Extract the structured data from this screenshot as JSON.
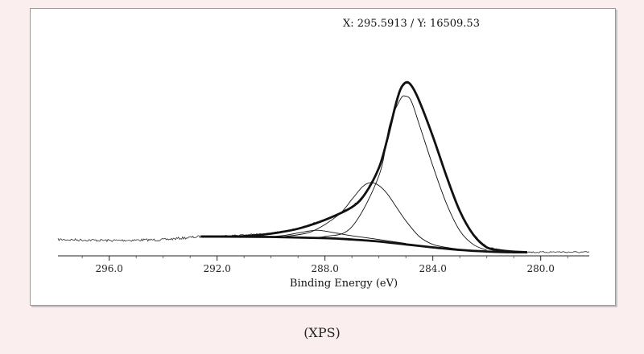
{
  "cursor_readout": "X: 295.5913 / Y: 16509.53",
  "caption": "(XPS)",
  "chart_data": {
    "type": "line",
    "xlabel": "Binding Energy (eV)",
    "ylabel": "",
    "title": "",
    "xlim": [
      297.9,
      278.2
    ],
    "x_reversed": true,
    "ylim": [
      0,
      100
    ],
    "x_ticks": [
      296.0,
      292.0,
      288.0,
      284.0,
      280.0
    ],
    "x_tick_labels": [
      "296.0",
      "292.0",
      "288.0",
      "284.0",
      "280.0"
    ],
    "grid": false,
    "series": [
      {
        "role": "measured",
        "style": "noisy-thin",
        "x": [
          297.9,
          296.0,
          294.0,
          292.6,
          292.0,
          290.0,
          289.0,
          288.0,
          287.0,
          286.5,
          286.0,
          285.7,
          285.4,
          285.2,
          285.0,
          284.8,
          284.5,
          284.0,
          283.5,
          283.0,
          282.5,
          282.0,
          281.5,
          281.0,
          280.5,
          280.0,
          279.5,
          279.0,
          278.2
        ],
        "y": [
          7.5,
          7.0,
          7.4,
          9.0,
          9.2,
          10.5,
          13.0,
          17.5,
          24.0,
          31.0,
          44.0,
          58.0,
          75.0,
          84.0,
          87.5,
          86.0,
          78.0,
          60.0,
          40.0,
          22.0,
          10.0,
          3.5,
          2.0,
          1.3,
          1.1,
          1.0,
          1.2,
          1.1,
          1.0
        ]
      },
      {
        "role": "envelope",
        "style": "thick",
        "x": [
          292.6,
          291.0,
          290.0,
          289.0,
          288.0,
          287.0,
          286.5,
          286.0,
          285.7,
          285.4,
          285.2,
          285.0,
          284.8,
          284.5,
          284.0,
          283.5,
          283.0,
          282.5,
          282.0,
          281.5,
          281.0,
          280.5
        ],
        "y": [
          9.0,
          9.2,
          10.5,
          13.0,
          17.5,
          24.0,
          31.0,
          44.0,
          58.0,
          75.0,
          84.0,
          87.5,
          86.0,
          78.0,
          60.0,
          40.0,
          22.0,
          10.0,
          3.5,
          2.0,
          1.3,
          1.0
        ]
      },
      {
        "role": "background",
        "style": "thick",
        "x": [
          292.6,
          290.0,
          288.0,
          287.0,
          286.0,
          285.0,
          284.0,
          283.0,
          282.0,
          281.0,
          280.5
        ],
        "y": [
          9.0,
          8.8,
          8.2,
          7.5,
          6.5,
          5.0,
          3.5,
          2.2,
          1.4,
          1.0,
          1.0
        ]
      },
      {
        "role": "component",
        "name": "",
        "style": "thin",
        "x": [
          289.5,
          288.5,
          287.5,
          287.0,
          286.6,
          286.3,
          286.0,
          285.7,
          285.4,
          285.0,
          284.5,
          284.0,
          283.5,
          283.0
        ],
        "y": [
          9.0,
          11.5,
          20.0,
          28.0,
          34.5,
          36.5,
          35.0,
          31.0,
          25.0,
          17.0,
          9.0,
          5.0,
          3.5,
          2.5
        ]
      },
      {
        "role": "component",
        "name": "",
        "style": "thin",
        "x": [
          289.0,
          288.0,
          287.0,
          286.0,
          285.6,
          285.2,
          285.0,
          284.8,
          284.5,
          284.0,
          283.5,
          283.0,
          282.5,
          282.0
        ],
        "y": [
          8.5,
          9.0,
          14.0,
          40.0,
          66.0,
          79.0,
          80.5,
          78.0,
          66.0,
          45.0,
          26.0,
          12.0,
          5.0,
          2.0
        ]
      },
      {
        "role": "component",
        "name": "",
        "style": "thin",
        "x": [
          290.0,
          289.5,
          289.0,
          288.6,
          288.3,
          288.0,
          287.5,
          287.0,
          286.0,
          285.0
        ],
        "y": [
          8.9,
          9.6,
          10.8,
          11.8,
          12.2,
          11.8,
          10.6,
          9.4,
          7.5,
          5.5
        ]
      }
    ]
  }
}
